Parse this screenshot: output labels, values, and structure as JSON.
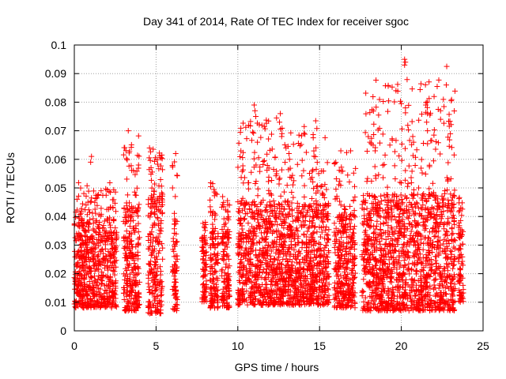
{
  "chart_data": {
    "type": "scatter",
    "title": "Day 341 of 2014, Rate Of TEC Index for receiver sgoc",
    "xlabel": "GPS time / hours",
    "ylabel": "ROTI / TECUs",
    "xlim": [
      0,
      25
    ],
    "ylim": [
      0,
      0.1
    ],
    "x_ticks": [
      "0",
      "5",
      "10",
      "15",
      "20",
      "25"
    ],
    "y_ticks": [
      "0",
      "0.01",
      "0.02",
      "0.03",
      "0.04",
      "0.05",
      "0.06",
      "0.07",
      "0.08",
      "0.09",
      "0.1"
    ],
    "grid": true,
    "marker": "plus",
    "color": "#ff0000",
    "series": [
      {
        "segments": [
          {
            "x": [
              0.0,
              2.6
            ],
            "base": [
              0.008,
              0.04
            ],
            "peak": 0.052
          },
          {
            "x": [
              3.0,
              4.0
            ],
            "base": [
              0.007,
              0.045
            ],
            "peak": 0.07
          },
          {
            "x": [
              4.5,
              5.4
            ],
            "base": [
              0.006,
              0.048
            ],
            "peak": 0.064
          },
          {
            "x": [
              6.0,
              6.3
            ],
            "base": [
              0.007,
              0.04
            ],
            "peak": 0.062
          },
          {
            "x": [
              7.8,
              8.1
            ],
            "base": [
              0.01,
              0.032
            ],
            "peak": 0.038
          },
          {
            "x": [
              8.3,
              8.8
            ],
            "base": [
              0.008,
              0.035
            ],
            "peak": 0.054
          },
          {
            "x": [
              9.0,
              9.5
            ],
            "base": [
              0.008,
              0.035
            ],
            "peak": 0.048
          },
          {
            "x": [
              10.0,
              15.6
            ],
            "base": [
              0.009,
              0.045
            ],
            "peak": 0.079
          },
          {
            "x": [
              15.9,
              17.2
            ],
            "base": [
              0.008,
              0.042
            ],
            "peak": 0.063
          },
          {
            "x": [
              17.6,
              23.3
            ],
            "base": [
              0.007,
              0.048
            ],
            "peak": 0.095
          },
          {
            "x": [
              23.5,
              23.8
            ],
            "base": [
              0.01,
              0.035
            ],
            "peak": 0.047
          }
        ],
        "outliers": [
          {
            "x": 20.2,
            "y": 0.095
          },
          {
            "x": 20.2,
            "y": 0.093
          },
          {
            "x": 20.25,
            "y": 0.094
          },
          {
            "x": 21.5,
            "y": 0.079
          },
          {
            "x": 21.6,
            "y": 0.076
          },
          {
            "x": 21.55,
            "y": 0.073
          },
          {
            "x": 22.4,
            "y": 0.077
          },
          {
            "x": 22.4,
            "y": 0.074
          },
          {
            "x": 11.0,
            "y": 0.079
          },
          {
            "x": 11.05,
            "y": 0.077
          },
          {
            "x": 11.1,
            "y": 0.075
          },
          {
            "x": 12.6,
            "y": 0.076
          },
          {
            "x": 12.55,
            "y": 0.073
          },
          {
            "x": 12.7,
            "y": 0.069
          },
          {
            "x": 3.3,
            "y": 0.07
          },
          {
            "x": 20.7,
            "y": 0.068
          },
          {
            "x": 20.75,
            "y": 0.066
          },
          {
            "x": 21.6,
            "y": 0.07
          },
          {
            "x": 19.3,
            "y": 0.065
          },
          {
            "x": 18.4,
            "y": 0.063
          },
          {
            "x": 16.9,
            "y": 0.063
          },
          {
            "x": 11.2,
            "y": 0.066
          },
          {
            "x": 1.05,
            "y": 0.061
          },
          {
            "x": 1.0,
            "y": 0.059
          },
          {
            "x": 4.6,
            "y": 0.064
          },
          {
            "x": 6.2,
            "y": 0.062
          }
        ]
      }
    ]
  }
}
